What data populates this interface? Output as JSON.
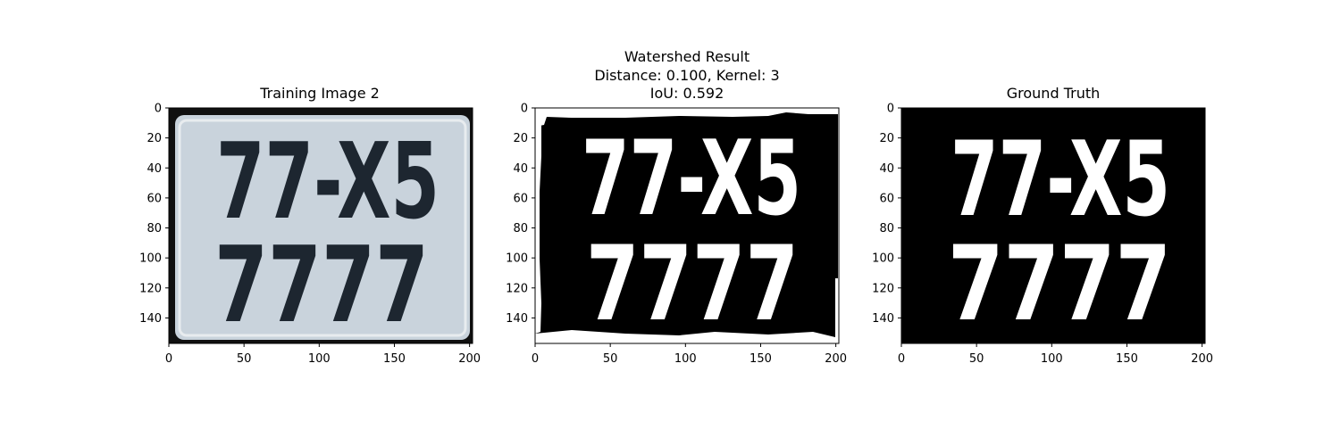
{
  "panels": [
    {
      "id": "training-image",
      "title_lines": [
        "Training Image 2"
      ],
      "kind": "photo",
      "plate_line1": "77-X5",
      "plate_line2": "7777",
      "colors": {
        "plate": "#c9d3dc",
        "plate_edge": "#e8ecef",
        "frame": "#101010",
        "chars": "#1d2630"
      }
    },
    {
      "id": "watershed-result",
      "title_lines": [
        "Watershed Result",
        "Distance: 0.100, Kernel: 3",
        "IoU: 0.592"
      ],
      "kind": "mask-noisy",
      "plate_line1": "77-X5",
      "plate_line2": "7777",
      "colors": {
        "background": "#000000",
        "chars": "#ffffff",
        "border_noise": "#ffffff"
      }
    },
    {
      "id": "ground-truth",
      "title_lines": [
        "Ground Truth"
      ],
      "kind": "mask",
      "plate_line1": "77-X5",
      "plate_line2": "7777",
      "colors": {
        "background": "#000000",
        "chars": "#ffffff"
      }
    }
  ],
  "axes": {
    "x_ticks": [
      0,
      50,
      100,
      150,
      200
    ],
    "y_ticks": [
      0,
      20,
      40,
      60,
      80,
      100,
      120,
      140
    ],
    "x_range": [
      0,
      202
    ],
    "y_range": [
      157,
      0
    ]
  }
}
